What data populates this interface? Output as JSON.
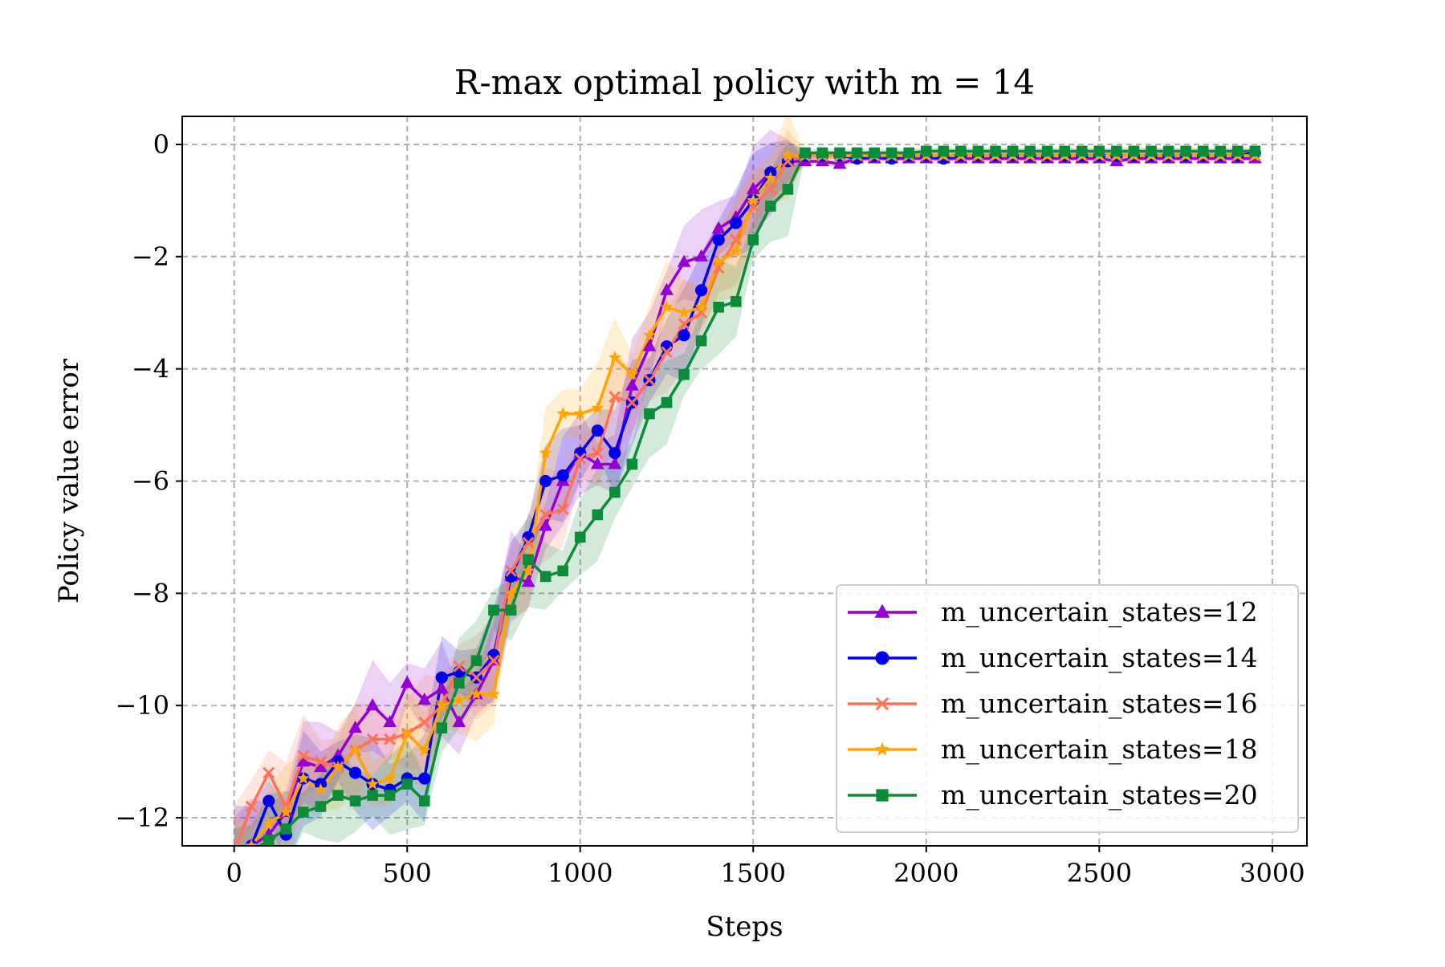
{
  "chart_data": {
    "type": "line",
    "title": "R-max optimal policy with m = 14",
    "xlabel": "Steps",
    "ylabel": "Policy value error",
    "xlim": [
      -150,
      3100
    ],
    "ylim": [
      -12.5,
      0.5
    ],
    "xticks": [
      0,
      500,
      1000,
      1500,
      2000,
      2500,
      3000
    ],
    "xtick_labels": [
      "0",
      "500",
      "1000",
      "1500",
      "2000",
      "2500",
      "3000"
    ],
    "yticks": [
      0,
      -2,
      -4,
      -6,
      -8,
      -10,
      -12
    ],
    "ytick_labels": [
      "0",
      "−2",
      "−4",
      "−6",
      "−8",
      "−10",
      "−12"
    ],
    "grid": true,
    "legend_position": "lower-right",
    "series": [
      {
        "name": "m_uncertain_states=12",
        "color": "#9400d3",
        "marker": "triangle",
        "x": [
          0,
          50,
          100,
          150,
          200,
          250,
          300,
          350,
          400,
          450,
          500,
          550,
          600,
          650,
          700,
          750,
          800,
          850,
          900,
          950,
          1000,
          1050,
          1100,
          1150,
          1200,
          1250,
          1300,
          1350,
          1400,
          1450,
          1500,
          1550,
          1600,
          1650,
          1700,
          1750,
          1800,
          1850,
          1900,
          1950,
          2000,
          2050,
          2100,
          2150,
          2200,
          2250,
          2300,
          2350,
          2400,
          2450,
          2500,
          2550,
          2600,
          2650,
          2700,
          2750,
          2800,
          2850,
          2900,
          2950
        ],
        "y": [
          -12.6,
          -12.5,
          -12.3,
          -11.9,
          -11.0,
          -11.1,
          -10.9,
          -10.4,
          -10.0,
          -10.3,
          -9.6,
          -9.9,
          -9.7,
          -10.3,
          -9.8,
          -9.2,
          -7.7,
          -7.8,
          -6.8,
          -6.0,
          -5.5,
          -5.7,
          -5.7,
          -4.3,
          -3.6,
          -2.6,
          -2.1,
          -2.0,
          -1.5,
          -1.3,
          -0.8,
          -0.5,
          -0.3,
          -0.3,
          -0.3,
          -0.35,
          -0.25,
          -0.25,
          -0.25,
          -0.25,
          -0.25,
          -0.25,
          -0.25,
          -0.25,
          -0.25,
          -0.25,
          -0.25,
          -0.25,
          -0.25,
          -0.25,
          -0.25,
          -0.3,
          -0.25,
          -0.25,
          -0.25,
          -0.25,
          -0.25,
          -0.25,
          -0.25,
          -0.25
        ]
      },
      {
        "name": "m_uncertain_states=14",
        "color": "#0000ee",
        "marker": "circle",
        "x": [
          0,
          50,
          100,
          150,
          200,
          250,
          300,
          350,
          400,
          450,
          500,
          550,
          600,
          650,
          700,
          750,
          800,
          850,
          900,
          950,
          1000,
          1050,
          1100,
          1150,
          1200,
          1250,
          1300,
          1350,
          1400,
          1450,
          1500,
          1550,
          1600,
          1650,
          1700,
          1750,
          1800,
          1850,
          1900,
          1950,
          2000,
          2050,
          2100,
          2150,
          2200,
          2250,
          2300,
          2350,
          2400,
          2450,
          2500,
          2550,
          2600,
          2650,
          2700,
          2750,
          2800,
          2850,
          2900,
          2950
        ],
        "y": [
          -12.6,
          -12.5,
          -11.7,
          -12.3,
          -11.3,
          -11.4,
          -11.0,
          -11.2,
          -11.4,
          -11.5,
          -11.3,
          -11.3,
          -9.5,
          -9.4,
          -9.5,
          -9.1,
          -7.7,
          -7.0,
          -6.0,
          -5.9,
          -5.5,
          -5.1,
          -5.5,
          -4.6,
          -4.2,
          -3.6,
          -3.4,
          -2.6,
          -1.7,
          -1.4,
          -1.0,
          -0.5,
          -0.3,
          -0.2,
          -0.2,
          -0.2,
          -0.25,
          -0.2,
          -0.25,
          -0.2,
          -0.2,
          -0.25,
          -0.2,
          -0.2,
          -0.2,
          -0.2,
          -0.2,
          -0.2,
          -0.2,
          -0.2,
          -0.2,
          -0.2,
          -0.2,
          -0.2,
          -0.2,
          -0.2,
          -0.2,
          -0.2,
          -0.2,
          -0.15
        ]
      },
      {
        "name": "m_uncertain_states=16",
        "color": "#ff7256",
        "marker": "x",
        "x": [
          0,
          50,
          100,
          150,
          200,
          250,
          300,
          350,
          400,
          450,
          500,
          550,
          600,
          650,
          700,
          750,
          800,
          850,
          900,
          950,
          1000,
          1050,
          1100,
          1150,
          1200,
          1250,
          1300,
          1350,
          1400,
          1450,
          1500,
          1550,
          1600,
          1650,
          1700,
          1750,
          1800,
          1850,
          1900,
          1950,
          2000,
          2050,
          2100,
          2150,
          2200,
          2250,
          2300,
          2350,
          2400,
          2450,
          2500,
          2550,
          2600,
          2650,
          2700,
          2750,
          2800,
          2850,
          2900,
          2950
        ],
        "y": [
          -12.6,
          -11.8,
          -11.2,
          -11.8,
          -10.9,
          -11.0,
          -11.1,
          -10.8,
          -10.6,
          -10.6,
          -10.5,
          -10.3,
          -10.0,
          -9.3,
          -9.5,
          -9.2,
          -7.6,
          -7.1,
          -6.6,
          -6.5,
          -5.6,
          -5.5,
          -4.5,
          -4.6,
          -4.2,
          -3.7,
          -3.2,
          -3.0,
          -2.2,
          -1.7,
          -1.1,
          -0.8,
          -0.3,
          -0.2,
          -0.2,
          -0.2,
          -0.2,
          -0.2,
          -0.2,
          -0.2,
          -0.2,
          -0.2,
          -0.2,
          -0.2,
          -0.2,
          -0.2,
          -0.2,
          -0.2,
          -0.2,
          -0.2,
          -0.2,
          -0.2,
          -0.2,
          -0.2,
          -0.2,
          -0.2,
          -0.2,
          -0.2,
          -0.2,
          -0.2
        ]
      },
      {
        "name": "m_uncertain_states=18",
        "color": "#ffa500",
        "marker": "star",
        "x": [
          0,
          50,
          100,
          150,
          200,
          250,
          300,
          350,
          400,
          450,
          500,
          550,
          600,
          650,
          700,
          750,
          800,
          850,
          900,
          950,
          1000,
          1050,
          1100,
          1150,
          1200,
          1250,
          1300,
          1350,
          1400,
          1450,
          1500,
          1550,
          1600,
          1650,
          1700,
          1750,
          1800,
          1850,
          1900,
          1950,
          2000,
          2050,
          2100,
          2150,
          2200,
          2250,
          2300,
          2350,
          2400,
          2450,
          2500,
          2550,
          2600,
          2650,
          2700,
          2750,
          2800,
          2850,
          2900,
          2950
        ],
        "y": [
          -12.6,
          -12.5,
          -12.1,
          -11.9,
          -11.3,
          -11.5,
          -11.1,
          -10.8,
          -11.4,
          -11.3,
          -10.5,
          -10.8,
          -10.0,
          -9.9,
          -9.8,
          -9.8,
          -8.0,
          -7.6,
          -5.5,
          -4.8,
          -4.8,
          -4.7,
          -3.8,
          -4.1,
          -3.4,
          -2.9,
          -3.0,
          -2.9,
          -2.1,
          -1.9,
          -1.0,
          -0.6,
          -0.2,
          -0.2,
          -0.2,
          -0.2,
          -0.2,
          -0.2,
          -0.2,
          -0.2,
          -0.2,
          -0.2,
          -0.2,
          -0.2,
          -0.2,
          -0.2,
          -0.2,
          -0.2,
          -0.2,
          -0.2,
          -0.2,
          -0.2,
          -0.2,
          -0.2,
          -0.2,
          -0.2,
          -0.2,
          -0.2,
          -0.2,
          -0.2
        ]
      },
      {
        "name": "m_uncertain_states=20",
        "color": "#0b8c38",
        "marker": "square",
        "x": [
          0,
          50,
          100,
          150,
          200,
          250,
          300,
          350,
          400,
          450,
          500,
          550,
          600,
          650,
          700,
          750,
          800,
          850,
          900,
          950,
          1000,
          1050,
          1100,
          1150,
          1200,
          1250,
          1300,
          1350,
          1400,
          1450,
          1500,
          1550,
          1600,
          1650,
          1700,
          1750,
          1800,
          1850,
          1900,
          1950,
          2000,
          2050,
          2100,
          2150,
          2200,
          2250,
          2300,
          2350,
          2400,
          2450,
          2500,
          2550,
          2600,
          2650,
          2700,
          2750,
          2800,
          2850,
          2900,
          2950
        ],
        "y": [
          -12.6,
          -12.6,
          -12.4,
          -12.2,
          -11.9,
          -11.8,
          -11.6,
          -11.7,
          -11.6,
          -11.6,
          -11.4,
          -11.7,
          -10.4,
          -9.6,
          -9.2,
          -8.3,
          -8.3,
          -7.4,
          -7.7,
          -7.6,
          -7.0,
          -6.6,
          -6.2,
          -5.7,
          -4.8,
          -4.6,
          -4.1,
          -3.5,
          -2.9,
          -2.8,
          -1.7,
          -1.1,
          -0.8,
          -0.15,
          -0.15,
          -0.15,
          -0.15,
          -0.15,
          -0.15,
          -0.15,
          -0.12,
          -0.12,
          -0.12,
          -0.12,
          -0.12,
          -0.12,
          -0.12,
          -0.12,
          -0.12,
          -0.12,
          -0.12,
          -0.12,
          -0.12,
          -0.12,
          -0.12,
          -0.12,
          -0.12,
          -0.12,
          -0.12,
          -0.12
        ]
      }
    ]
  }
}
